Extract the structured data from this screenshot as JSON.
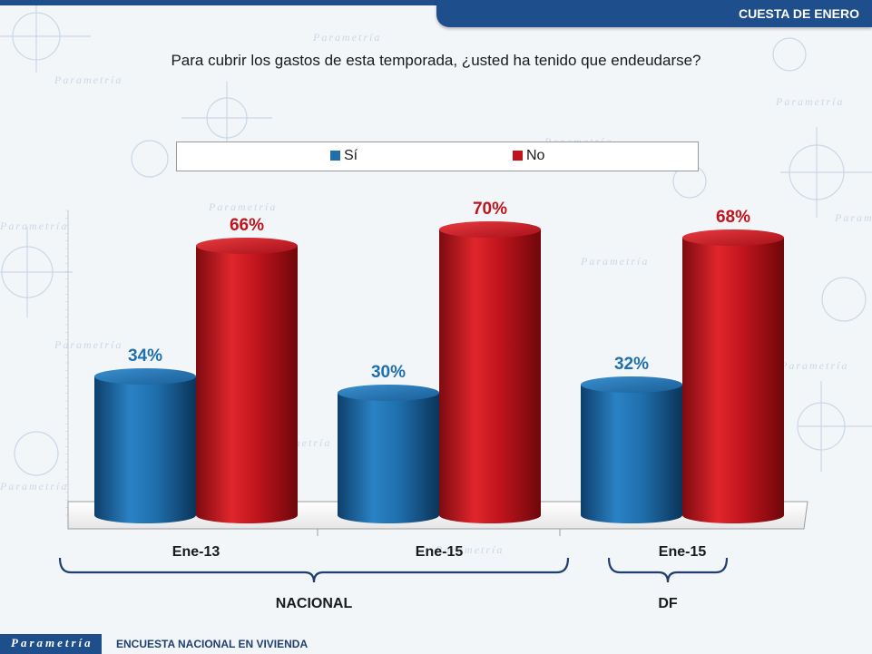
{
  "header": {
    "title": "CUESTA DE ENERO"
  },
  "question": "Para cubrir los gastos de esta temporada, ¿usted ha tenido que endeudarse?",
  "watermark": "Parametría",
  "footer": {
    "logo": "Parametría",
    "text": "ENCUESTA NACIONAL EN VIVIENDA"
  },
  "colors": {
    "si": "#1f6fad",
    "no": "#c0141c",
    "brand": "#1f4e8c"
  },
  "chart_data": {
    "type": "bar",
    "categories": [
      "Ene-13",
      "Ene-15",
      "Ene-15"
    ],
    "groups": [
      {
        "label": "NACIONAL",
        "categories": [
          0,
          1
        ]
      },
      {
        "label": "DF",
        "categories": [
          2
        ]
      }
    ],
    "series": [
      {
        "name": "Sí",
        "values": [
          34,
          30,
          32
        ],
        "labels": [
          "34%",
          "30%",
          "32%"
        ]
      },
      {
        "name": "No",
        "values": [
          66,
          70,
          68
        ],
        "labels": [
          "66%",
          "70%",
          "68%"
        ]
      }
    ],
    "ylim": [
      0,
      100
    ],
    "legend": "top",
    "grid": false
  }
}
